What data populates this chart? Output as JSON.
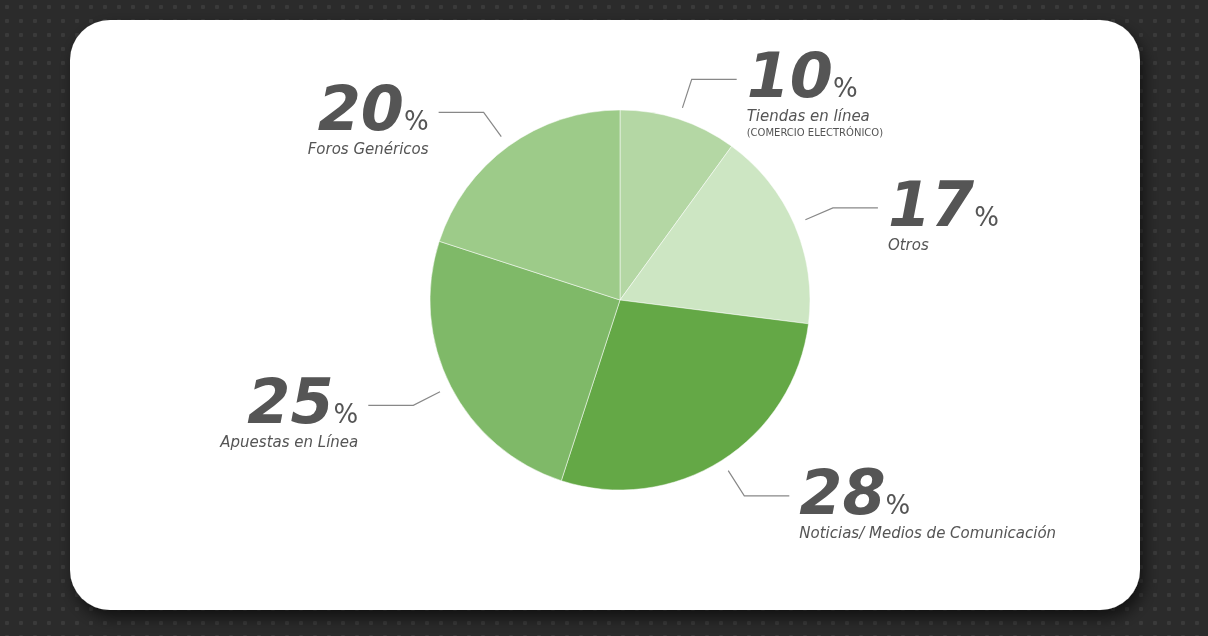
{
  "chart_data": {
    "type": "pie",
    "categories": [
      "Tiendas en línea\n(COMERCIO ELECTRÓNICO)",
      "Otros",
      "Noticias/ Medios de Comunicación",
      "Apuestas en Línea",
      "Foros Genéricos"
    ],
    "values": [
      10,
      17,
      28,
      25,
      20
    ],
    "colors": [
      "#b4d7a4",
      "#cde6c3",
      "#64a846",
      "#7fb968",
      "#9dcb89"
    ],
    "value_labels": [
      "10%",
      "17%",
      "28%",
      "25%",
      "20%"
    ]
  }
}
